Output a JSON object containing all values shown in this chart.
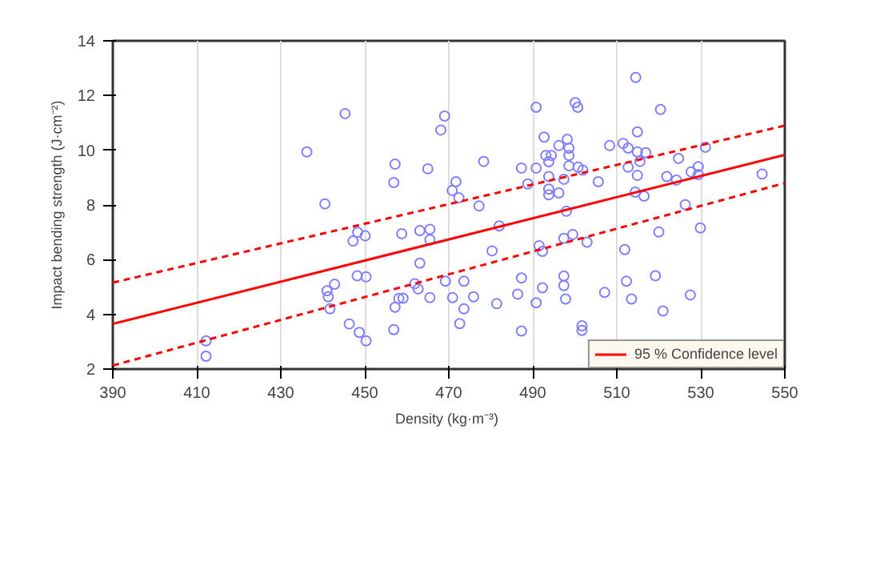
{
  "chart_data": {
    "type": "scatter",
    "xlabel": "Density  (kg·m⁻³)",
    "ylabel": "Impact bending strength (J·cm⁻²)",
    "xlim": [
      390,
      550
    ],
    "xticks": [
      390,
      410,
      430,
      450,
      470,
      490,
      510,
      530,
      550
    ],
    "ylim": [
      2,
      14
    ],
    "yticks": [
      2,
      4,
      6,
      8,
      10,
      12,
      14
    ],
    "grid": "x",
    "legend": "bottom right",
    "series": [
      {
        "type": "scatter",
        "marker": "circle",
        "color": "#8080ff",
        "x": [
          445.3,
          436.2,
          440.5,
          448.3,
          450.1,
          447.2,
          448.2,
          450.3,
          442.8,
          441.0,
          441.3,
          441.7,
          446.3,
          448.7,
          450.3,
          412.2,
          412.2,
          457.2,
          456.9,
          458.8,
          458.1,
          459.1,
          457.2,
          456.9,
          463.1,
          465.5,
          465.5,
          463.1,
          461.9,
          462.7,
          465.5,
          465.0,
          469.0,
          468.1,
          469.2,
          470.9,
          473.6,
          473.6,
          472.6,
          475.9,
          471.7,
          470.8,
          472.4,
          477.2,
          478.3,
          482.0,
          480.3,
          481.4,
          486.4,
          487.3,
          487.3,
          487.3,
          488.8,
          490.8,
          490.8,
          490.8,
          491.5,
          492.3,
          492.3,
          492.7,
          493.1,
          494.4,
          493.8,
          493.8,
          493.8,
          493.8,
          496.2,
          496.2,
          498.2,
          498.6,
          498.6,
          498.6,
          497.4,
          498.0,
          497.4,
          499.5,
          497.4,
          497.4,
          497.8,
          500.1,
          500.7,
          500.8,
          501.9,
          502.9,
          501.7,
          501.7,
          505.6,
          507.1,
          508.3,
          511.5,
          512.7,
          512.7,
          511.9,
          512.3,
          513.5,
          514.5,
          514.9,
          514.9,
          515.5,
          516.9,
          514.9,
          514.4,
          516.5,
          520.4,
          520.0,
          519.2,
          521.0,
          521.9,
          524.2,
          524.7,
          526.3,
          527.7,
          529.4,
          529.4,
          531.1,
          529.9,
          527.5,
          544.6
        ],
        "values": [
          11.34,
          9.94,
          8.04,
          7.0,
          6.87,
          6.68,
          5.41,
          5.37,
          5.1,
          4.86,
          4.64,
          4.2,
          3.65,
          3.34,
          3.03,
          3.03,
          2.47,
          9.49,
          8.82,
          6.95,
          4.58,
          4.59,
          4.26,
          3.44,
          7.06,
          7.11,
          6.73,
          5.87,
          5.12,
          4.93,
          4.61,
          9.32,
          11.25,
          10.74,
          5.21,
          4.61,
          5.21,
          4.2,
          3.66,
          4.64,
          8.85,
          8.53,
          8.26,
          7.96,
          9.59,
          7.23,
          6.32,
          4.39,
          4.74,
          5.33,
          3.39,
          9.35,
          8.77,
          11.57,
          9.35,
          4.42,
          6.51,
          6.3,
          4.97,
          10.48,
          9.81,
          9.81,
          9.58,
          9.04,
          8.58,
          8.37,
          10.17,
          8.44,
          10.4,
          10.08,
          9.81,
          9.43,
          8.94,
          7.77,
          6.78,
          6.92,
          5.4,
          5.05,
          4.56,
          11.74,
          11.57,
          9.38,
          9.27,
          6.64,
          3.58,
          3.41,
          8.85,
          4.8,
          10.17,
          10.25,
          10.08,
          9.38,
          6.37,
          5.21,
          4.56,
          12.66,
          10.67,
          9.94,
          9.59,
          9.91,
          9.08,
          8.47,
          8.32,
          11.49,
          7.01,
          5.41,
          4.12,
          9.04,
          8.91,
          9.7,
          8.01,
          9.21,
          9.4,
          9.11,
          10.11,
          7.16,
          4.71,
          9.13
        ]
      },
      {
        "type": "line",
        "name": "95 % Confidence level",
        "color": "#ff0000",
        "line_style": "solid",
        "x": [
          390,
          550
        ],
        "values": [
          3.65,
          9.83
        ]
      },
      {
        "type": "line",
        "color": "#ff0000",
        "line_style": "dashed",
        "x": [
          390,
          550
        ],
        "values": [
          5.16,
          10.9
        ]
      },
      {
        "type": "line",
        "color": "#ff0000",
        "line_style": "dashed",
        "x": [
          390,
          550
        ],
        "values": [
          2.13,
          8.8
        ]
      }
    ]
  }
}
